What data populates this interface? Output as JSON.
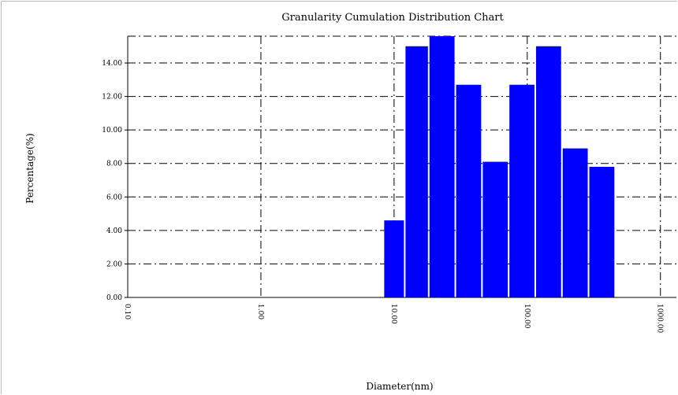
{
  "chart_data": {
    "type": "bar",
    "title": "Granularity Cumulation Distribution   Chart",
    "xlabel": "Diameter(nm)",
    "ylabel": "Percentage(%)",
    "xlim": [
      0,
      1.03
    ],
    "ylim": [
      0,
      15.6
    ],
    "grid": true,
    "y_ticks": [
      "0.00",
      "2.00",
      "4.00",
      "6.00",
      "8.00",
      "10.00",
      "12.00",
      "14.00"
    ],
    "x_ticks": [
      "0.10",
      "1.00",
      "10.00",
      "100.00",
      "1000.00"
    ],
    "bars": [
      {
        "x0": 0.48,
        "x1": 0.52,
        "value": 4.6
      },
      {
        "x0": 0.52,
        "x1": 0.565,
        "value": 15.0
      },
      {
        "x0": 0.565,
        "x1": 0.615,
        "value": 15.6
      },
      {
        "x0": 0.615,
        "x1": 0.665,
        "value": 12.7
      },
      {
        "x0": 0.665,
        "x1": 0.715,
        "value": 8.1
      },
      {
        "x0": 0.715,
        "x1": 0.765,
        "value": 12.7
      },
      {
        "x0": 0.765,
        "x1": 0.815,
        "value": 15.0
      },
      {
        "x0": 0.815,
        "x1": 0.865,
        "value": 8.9
      },
      {
        "x0": 0.865,
        "x1": 0.915,
        "value": 7.8
      }
    ],
    "bar_color": "#0000ff"
  }
}
